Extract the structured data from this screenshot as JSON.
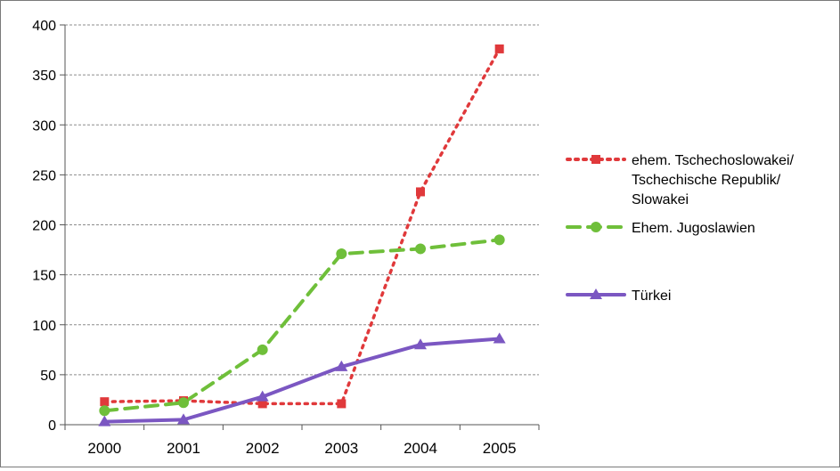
{
  "chart_data": {
    "type": "line",
    "categories": [
      "2000",
      "2001",
      "2002",
      "2003",
      "2004",
      "2005"
    ],
    "title": "",
    "xlabel": "",
    "ylabel": "",
    "ylim": [
      0,
      400
    ],
    "yticks": [
      "0",
      "50",
      "100",
      "150",
      "200",
      "250",
      "300",
      "350",
      "400"
    ],
    "grid": "horizontal dashed",
    "legend_position": "right",
    "series": [
      {
        "name_lines": [
          "ehem. Tschechoslowakei/",
          "Tschechische Republik/",
          "Slowakei"
        ],
        "values": [
          23,
          24,
          21,
          21,
          233,
          376
        ],
        "color": "#e0393b",
        "line_style": "dotted",
        "marker": "square"
      },
      {
        "name_lines": [
          "Ehem. Jugoslawien"
        ],
        "values": [
          14,
          22,
          75,
          171,
          176,
          185
        ],
        "color": "#6fbf3a",
        "line_style": "dashed",
        "marker": "circle"
      },
      {
        "name_lines": [
          "Türkei"
        ],
        "values": [
          3,
          5,
          28,
          58,
          80,
          86
        ],
        "color": "#7b57c2",
        "line_style": "solid",
        "marker": "triangle"
      }
    ]
  }
}
